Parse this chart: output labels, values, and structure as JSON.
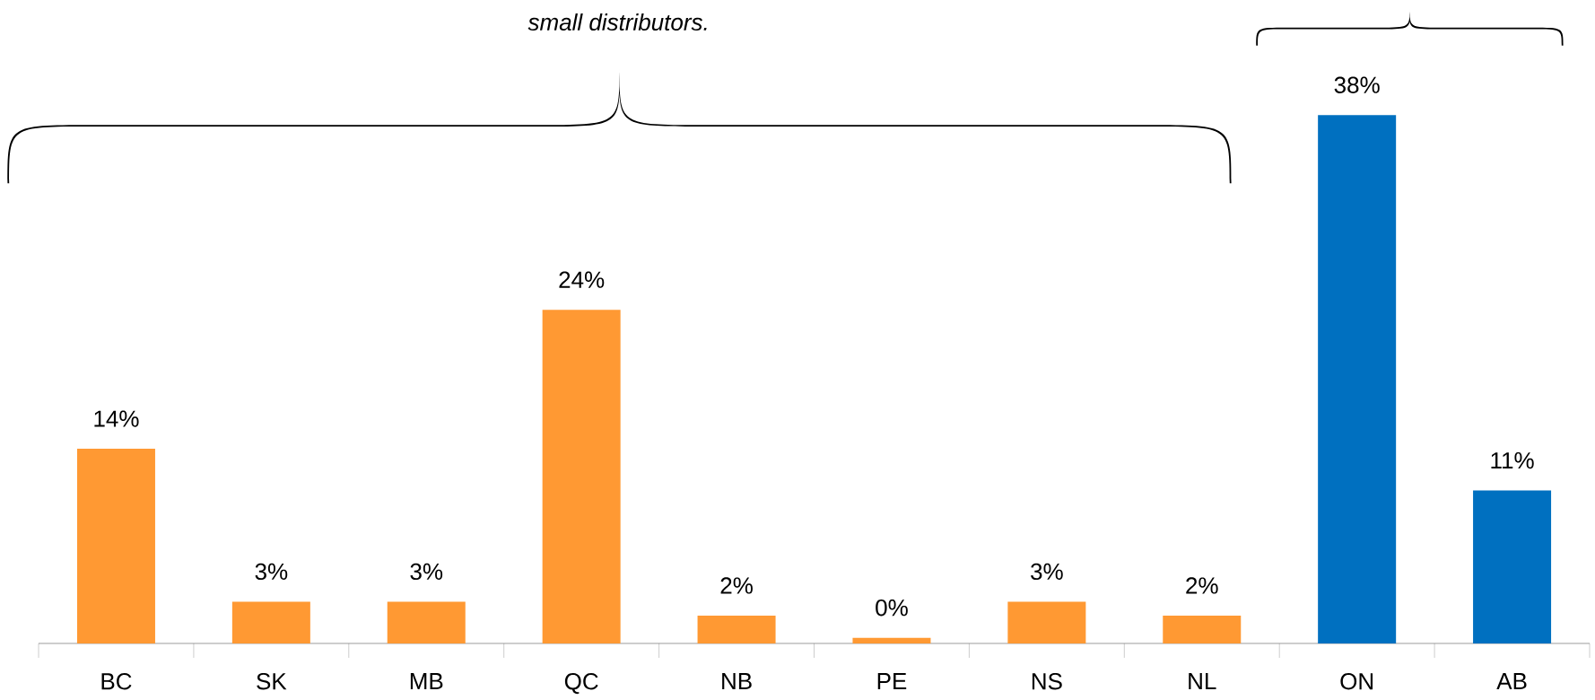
{
  "chart_data": {
    "type": "bar",
    "categories": [
      "BC",
      "SK",
      "MB",
      "QC",
      "NB",
      "PE",
      "NS",
      "NL",
      "ON",
      "AB"
    ],
    "values": [
      14,
      3,
      3,
      24,
      2,
      0.4,
      3,
      2,
      38,
      11
    ],
    "value_labels": [
      "14%",
      "3%",
      "3%",
      "24%",
      "2%",
      "0%",
      "3%",
      "2%",
      "38%",
      "11%"
    ],
    "colors": [
      "#ff9933",
      "#ff9933",
      "#ff9933",
      "#ff9933",
      "#ff9933",
      "#ff9933",
      "#ff9933",
      "#ff9933",
      "#0070c0",
      "#0070c0"
    ],
    "annotations": [
      "small distributors."
    ]
  }
}
